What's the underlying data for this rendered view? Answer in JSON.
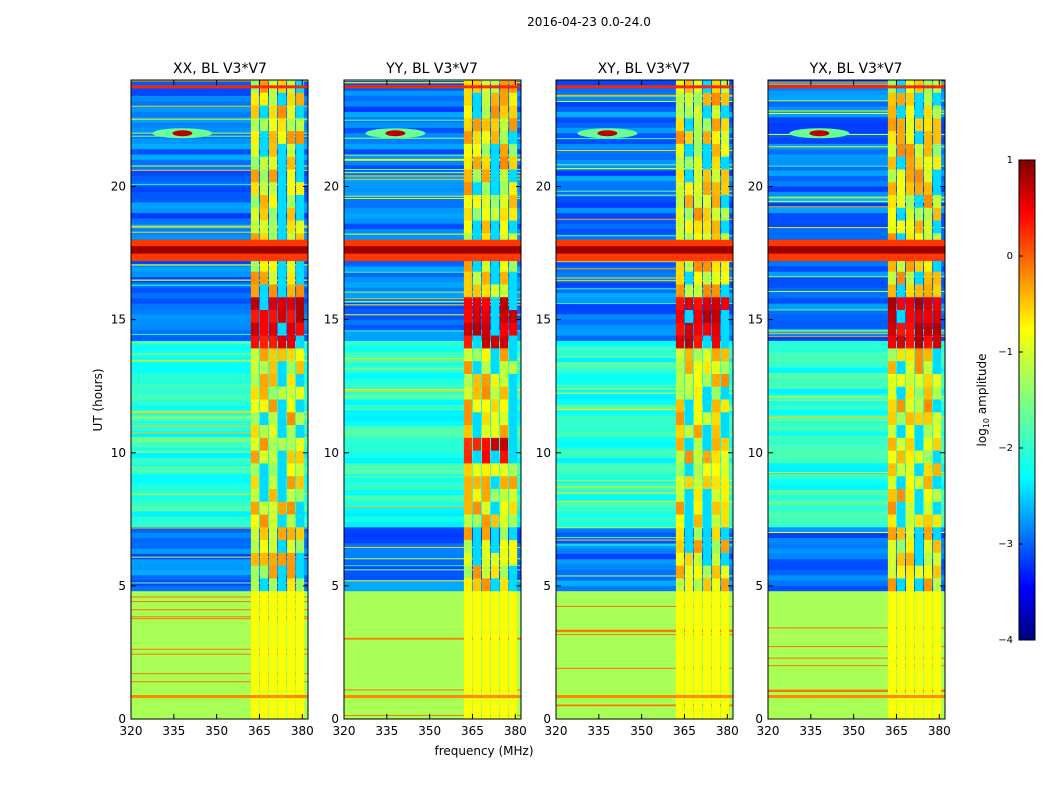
{
  "suptitle": "2016-04-23 0.0-24.0",
  "colors": {
    "jet_scale": [
      "#00007f",
      "#0000ff",
      "#007fff",
      "#00ffff",
      "#7fff7f",
      "#ffff00",
      "#ff7f00",
      "#ff0000",
      "#7f0000"
    ],
    "frame": "#000000"
  },
  "chart_data": {
    "type": "heatmap",
    "panels": [
      {
        "title": "XX, BL V3*V7",
        "ylabel": "UT (hours)",
        "xlabel": ""
      },
      {
        "title": "YY, BL V3*V7",
        "ylabel": "",
        "xlabel": "frequency (MHz)"
      },
      {
        "title": "XY, BL V3*V7",
        "ylabel": "",
        "xlabel": ""
      },
      {
        "title": "YX, BL V3*V7",
        "ylabel": "",
        "xlabel": ""
      }
    ],
    "xlim": [
      320,
      382
    ],
    "ylim": [
      0,
      24
    ],
    "xticks": [
      320,
      335,
      350,
      365,
      380
    ],
    "yticks": [
      0,
      5,
      10,
      15,
      20
    ],
    "colorbar": {
      "label": "log10 amplitude",
      "label_base": "log",
      "label_sub": "10",
      "label_rest": " amplitude",
      "range": [
        -4,
        1
      ],
      "ticks": [
        1,
        0,
        -1,
        -2,
        -3,
        -4
      ],
      "tick_labels": [
        "1",
        "0",
        "−1",
        "−2",
        "−3",
        "−4"
      ]
    },
    "features": {
      "flagged_block_hours": [
        0,
        4.8
      ],
      "flagged_value": -1.3,
      "rfi_band_mhz": [
        362,
        381
      ],
      "strong_rfi_hours": [
        17.2,
        18.0
      ],
      "hot_spot": {
        "freq": 338,
        "hour": 22.0
      }
    }
  }
}
